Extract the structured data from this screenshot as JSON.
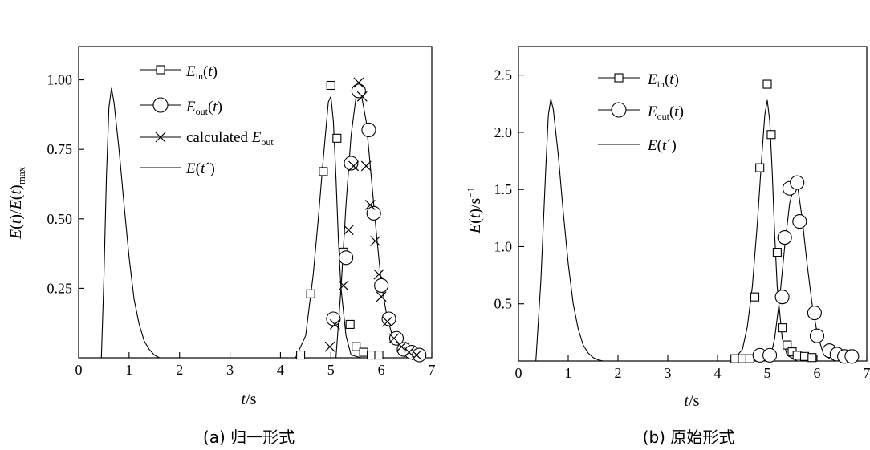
{
  "chart_data": [
    {
      "type": "line",
      "caption": "(a) 归一形式",
      "xlabel": "t/s",
      "ylabel": "E(t)/E(t)max",
      "xlim": [
        0,
        7
      ],
      "ylim": [
        0,
        1.12
      ],
      "xticks": [
        0,
        1,
        2,
        3,
        4,
        5,
        6,
        7
      ],
      "yticks": [
        0.25,
        0.5,
        0.75,
        1.0
      ],
      "ytick_labels": [
        "0.25",
        "0.50",
        "0.75",
        "1.00"
      ],
      "legend_position": "top-left",
      "series": [
        {
          "name": "Ein(t)",
          "marker": "square",
          "x": [
            4.4,
            4.6,
            4.85,
            5.0,
            5.12,
            5.25,
            5.38,
            5.5,
            5.65,
            5.8,
            5.95
          ],
          "y": [
            0.01,
            0.23,
            0.67,
            0.98,
            0.79,
            0.38,
            0.12,
            0.04,
            0.02,
            0.01,
            0.01
          ]
        },
        {
          "name": "Eout(t)",
          "marker": "circle",
          "x": [
            5.05,
            5.3,
            5.4,
            5.55,
            5.75,
            5.85,
            6.0,
            6.15,
            6.3,
            6.45,
            6.6,
            6.75
          ],
          "y": [
            0.14,
            0.36,
            0.7,
            0.96,
            0.82,
            0.52,
            0.26,
            0.14,
            0.07,
            0.03,
            0.02,
            0.01
          ]
        },
        {
          "name": "calculated Eout",
          "marker": "cross",
          "x": [
            4.98,
            5.08,
            5.25,
            5.35,
            5.45,
            5.55,
            5.62,
            5.7,
            5.78,
            5.88,
            5.95,
            6.0,
            6.12,
            6.25,
            6.4,
            6.55,
            6.7
          ],
          "y": [
            0.04,
            0.12,
            0.26,
            0.46,
            0.69,
            0.99,
            0.94,
            0.69,
            0.55,
            0.42,
            0.3,
            0.22,
            0.13,
            0.07,
            0.04,
            0.02,
            0.01
          ]
        },
        {
          "name": "E(t´)",
          "marker": "none",
          "x": [
            0.45,
            0.5,
            0.55,
            0.6,
            0.65,
            0.7,
            0.8,
            0.9,
            1.0,
            1.1,
            1.2,
            1.3,
            1.4,
            1.5,
            1.6,
            1.7
          ],
          "y": [
            0.0,
            0.28,
            0.65,
            0.9,
            0.97,
            0.92,
            0.75,
            0.55,
            0.36,
            0.21,
            0.12,
            0.06,
            0.03,
            0.01,
            0.0,
            0.0
          ]
        },
        {
          "name": "Ein fit",
          "marker": "none",
          "in_legend": false,
          "x": [
            4.3,
            4.5,
            4.65,
            4.75,
            4.85,
            4.9,
            4.95,
            5.0,
            5.05,
            5.1,
            5.15,
            5.2,
            5.3,
            5.4,
            5.6
          ],
          "y": [
            0.0,
            0.08,
            0.3,
            0.5,
            0.72,
            0.82,
            0.92,
            0.94,
            0.85,
            0.65,
            0.42,
            0.25,
            0.08,
            0.01,
            0.0
          ]
        },
        {
          "name": "Eout fit",
          "marker": "none",
          "in_legend": false,
          "x": [
            5.1,
            5.2,
            5.3,
            5.4,
            5.5,
            5.55,
            5.6,
            5.7,
            5.8,
            5.9,
            6.0,
            6.1,
            6.2,
            6.35,
            6.5,
            6.7
          ],
          "y": [
            0.0,
            0.25,
            0.55,
            0.8,
            0.94,
            0.97,
            0.95,
            0.85,
            0.65,
            0.45,
            0.27,
            0.16,
            0.09,
            0.04,
            0.02,
            0.0
          ]
        }
      ]
    },
    {
      "type": "line",
      "caption": "(b) 原始形式",
      "xlabel": "t/s",
      "ylabel": "E(t)/s⁻¹",
      "xlim": [
        0,
        7
      ],
      "ylim": [
        0,
        2.75
      ],
      "xticks": [
        0,
        1,
        2,
        3,
        4,
        5,
        6,
        7
      ],
      "yticks": [
        0.5,
        1.0,
        1.5,
        2.0,
        2.5
      ],
      "ytick_labels": [
        "0.5",
        "1.0",
        "1.5",
        "2.0",
        "2.5"
      ],
      "legend_position": "top-left",
      "series": [
        {
          "name": "Ein(t)",
          "marker": "square",
          "x": [
            4.35,
            4.5,
            4.65,
            4.75,
            4.85,
            5.0,
            5.08,
            5.2,
            5.3,
            5.4,
            5.5,
            5.6,
            5.75,
            5.9
          ],
          "y": [
            0.02,
            0.02,
            0.02,
            0.56,
            1.69,
            2.42,
            1.98,
            0.95,
            0.29,
            0.14,
            0.08,
            0.05,
            0.04,
            0.03
          ]
        },
        {
          "name": "Eout(t)",
          "marker": "circle",
          "x": [
            4.85,
            5.05,
            5.3,
            5.35,
            5.45,
            5.6,
            5.65,
            5.95,
            6.0,
            6.25,
            6.4,
            6.55,
            6.7
          ],
          "y": [
            0.05,
            0.05,
            0.56,
            1.08,
            1.51,
            1.56,
            1.22,
            0.42,
            0.22,
            0.09,
            0.06,
            0.04,
            0.04
          ]
        },
        {
          "name": "E(t´)",
          "marker": "none",
          "x": [
            0.35,
            0.45,
            0.55,
            0.6,
            0.65,
            0.7,
            0.8,
            0.9,
            1.0,
            1.1,
            1.2,
            1.3,
            1.4,
            1.5,
            1.6,
            1.7
          ],
          "y": [
            0.0,
            0.7,
            1.7,
            2.15,
            2.29,
            2.2,
            1.8,
            1.3,
            0.85,
            0.5,
            0.28,
            0.14,
            0.07,
            0.03,
            0.01,
            0.0
          ]
        },
        {
          "name": "Ein fit",
          "marker": "none",
          "in_legend": false,
          "x": [
            4.3,
            4.5,
            4.6,
            4.7,
            4.8,
            4.9,
            4.95,
            5.0,
            5.05,
            5.1,
            5.15,
            5.2,
            5.3,
            5.4,
            5.6
          ],
          "y": [
            0.0,
            0.1,
            0.3,
            0.65,
            1.2,
            1.85,
            2.15,
            2.28,
            2.1,
            1.65,
            1.1,
            0.65,
            0.2,
            0.05,
            0.0
          ]
        },
        {
          "name": "Eout fit",
          "marker": "none",
          "in_legend": false,
          "x": [
            5.05,
            5.15,
            5.25,
            5.35,
            5.45,
            5.55,
            5.62,
            5.7,
            5.8,
            5.9,
            6.0,
            6.1,
            6.25,
            6.4
          ],
          "y": [
            0.0,
            0.2,
            0.55,
            1.0,
            1.38,
            1.55,
            1.5,
            1.25,
            0.85,
            0.5,
            0.25,
            0.1,
            0.02,
            0.0
          ]
        }
      ]
    }
  ]
}
